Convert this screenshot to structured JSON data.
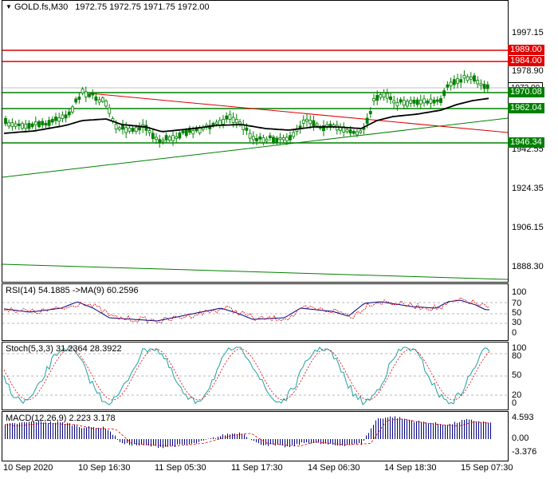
{
  "header": {
    "symbol": "GOLD.fs,M30",
    "ohlc": "1972.75 1972.75 1971.75 1972.00"
  },
  "price_axis": {
    "ticks": [
      "1997.15",
      "1978.90",
      "1960.70",
      "1942.55",
      "1924.35",
      "1906.15",
      "1888.30"
    ],
    "tags": [
      {
        "text": "1989.00",
        "bg": "#e00000",
        "fg": "#ffffff"
      },
      {
        "text": "1984.00",
        "bg": "#e00000",
        "fg": "#ffffff"
      },
      {
        "text": "1970.08",
        "bg": "#008000",
        "fg": "#ffffff"
      },
      {
        "text": "1962.04",
        "bg": "#008000",
        "fg": "#ffffff"
      },
      {
        "text": "1946.34",
        "bg": "#008000",
        "fg": "#ffffff"
      }
    ],
    "current_price": "1972.00"
  },
  "rsi": {
    "label": "RSI(14) 54.1885  ->MA(9) 60.2596",
    "ticks": [
      "100",
      "70",
      "50",
      "30",
      "0"
    ]
  },
  "stoch": {
    "label": "Stoch(5,3,3) 31.2364 28.3922",
    "ticks": [
      "100",
      "80",
      "50",
      "20",
      "0"
    ]
  },
  "macd": {
    "label": "MACD(12,26,9) 2.223 3.178",
    "ticks": [
      "4.593",
      "0.00",
      "-3.376"
    ]
  },
  "time_axis": {
    "labels": [
      "10 Sep 2020",
      "10 Sep 16:30",
      "11 Sep 05:30",
      "11 Sep 17:30",
      "14 Sep 06:30",
      "14 Sep 18:30",
      "15 Sep 07:30"
    ]
  },
  "colors": {
    "resistance": "#e00000",
    "support": "#008000",
    "candle": "#008000",
    "ma": "#000000",
    "rsi_line": "#000080",
    "rsi_signal": "#e00000",
    "stoch_main": "#20a0a0",
    "stoch_signal": "#e00000",
    "macd_hist": "#000080",
    "macd_signal": "#e00000"
  }
}
